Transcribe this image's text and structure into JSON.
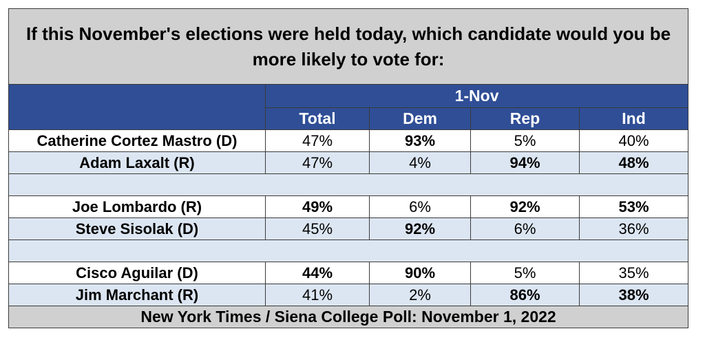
{
  "chart_data": {
    "type": "table",
    "title": "If this November's elections were held today, which candidate would you be more likely to vote for:",
    "date_header": "1-Nov",
    "columns": [
      "Total",
      "Dem",
      "Rep",
      "Ind"
    ],
    "groups": [
      {
        "rows": [
          {
            "name": "Catherine Cortez Mastro (D)",
            "values": [
              "47%",
              "93%",
              "5%",
              "40%"
            ],
            "bold": [
              false,
              true,
              false,
              false
            ]
          },
          {
            "name": "Adam Laxalt (R)",
            "values": [
              "47%",
              "4%",
              "94%",
              "48%"
            ],
            "bold": [
              false,
              false,
              true,
              true
            ]
          }
        ]
      },
      {
        "rows": [
          {
            "name": "Joe Lombardo (R)",
            "values": [
              "49%",
              "6%",
              "92%",
              "53%"
            ],
            "bold": [
              true,
              false,
              true,
              true
            ]
          },
          {
            "name": "Steve Sisolak (D)",
            "values": [
              "45%",
              "92%",
              "6%",
              "36%"
            ],
            "bold": [
              false,
              true,
              false,
              false
            ]
          }
        ]
      },
      {
        "rows": [
          {
            "name": "Cisco Aguilar (D)",
            "values": [
              "44%",
              "90%",
              "5%",
              "35%"
            ],
            "bold": [
              true,
              true,
              false,
              false
            ]
          },
          {
            "name": "Jim Marchant (R)",
            "values": [
              "41%",
              "2%",
              "86%",
              "38%"
            ],
            "bold": [
              false,
              false,
              true,
              true
            ]
          }
        ]
      }
    ],
    "footer": "New York Times / Siena College Poll: November 1, 2022"
  },
  "colors": {
    "header_blue": "#2f4e96",
    "alt_row": "#dce6f2",
    "title_gray": "#d0d0d0"
  }
}
